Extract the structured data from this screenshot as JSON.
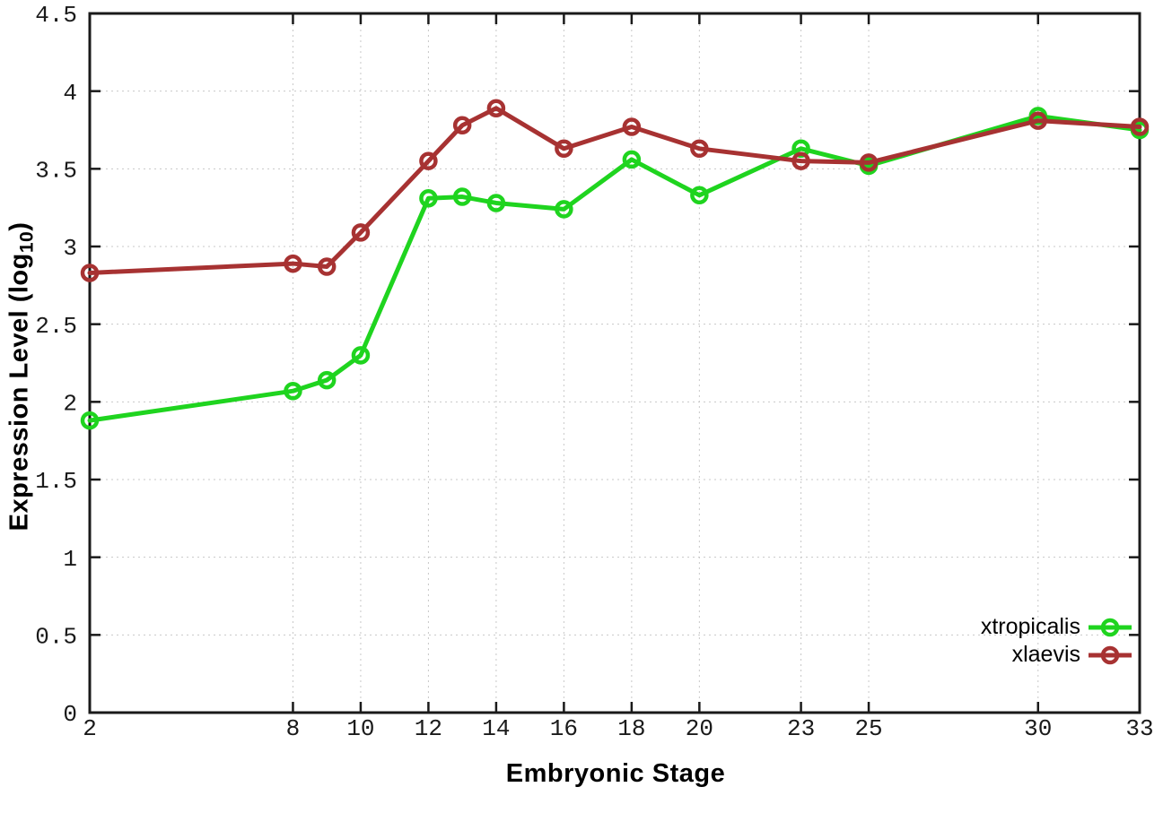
{
  "figure": {
    "background": "#ffffff",
    "ylabel_parts": {
      "main": "Expression Level (log",
      "sub": "10",
      "end": ")"
    }
  },
  "chart_data": {
    "type": "line",
    "title": "",
    "xlabel": "Embryonic Stage",
    "ylabel": "Expression Level (log10)",
    "x": [
      2,
      8,
      9,
      10,
      12,
      13,
      14,
      16,
      18,
      20,
      23,
      25,
      30,
      33
    ],
    "series": [
      {
        "name": "xtropicalis",
        "color": "#1fd41f",
        "values": [
          1.88,
          2.07,
          2.14,
          2.3,
          3.31,
          3.32,
          3.28,
          3.24,
          3.56,
          3.33,
          3.63,
          3.52,
          3.84,
          3.75
        ]
      },
      {
        "name": "xlaevis",
        "color": "#a73232",
        "values": [
          2.83,
          2.89,
          2.87,
          3.09,
          3.55,
          3.78,
          3.89,
          3.63,
          3.77,
          3.63,
          3.55,
          3.54,
          3.81,
          3.77
        ]
      }
    ],
    "x_ticks": [
      2,
      8,
      10,
      12,
      14,
      16,
      18,
      20,
      23,
      25,
      30,
      33
    ],
    "y_ticks": [
      0,
      0.5,
      1,
      1.5,
      2,
      2.5,
      3,
      3.5,
      4,
      4.5
    ],
    "xlim": [
      2,
      33
    ],
    "ylim": [
      0,
      4.5
    ],
    "grid": true,
    "legend_position": "bottom-right",
    "marker": "open-circle",
    "line_width": 5,
    "axis_color": "#1a1a1a",
    "grid_color": "#c8c8c8",
    "tick_label_color": "#1a1a1a"
  }
}
